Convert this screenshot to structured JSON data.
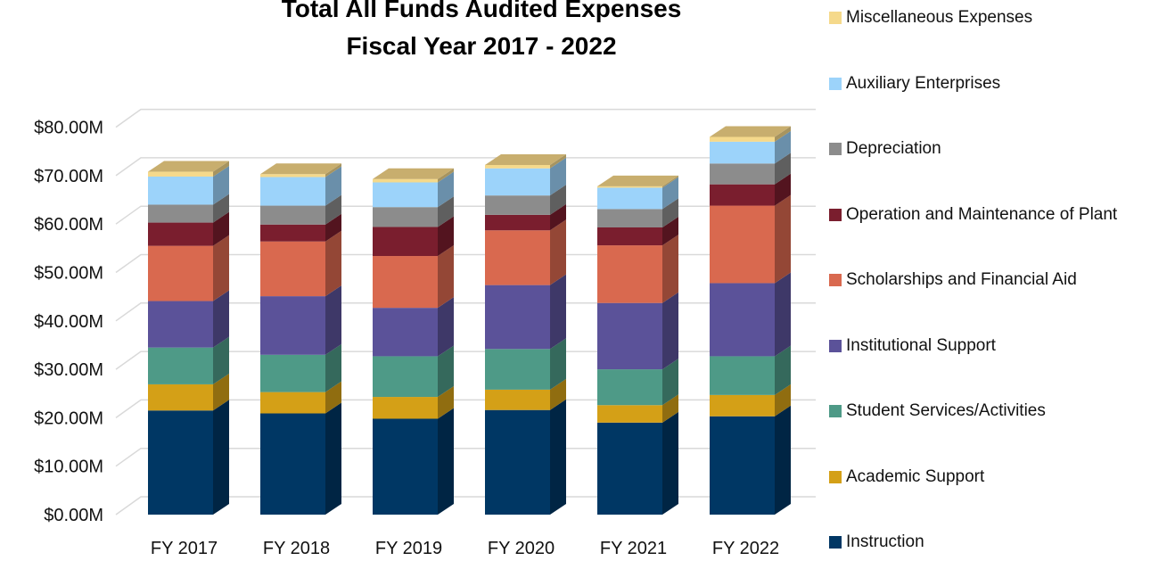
{
  "chart_data": {
    "type": "bar",
    "stacked": true,
    "title": "Total All Funds Audited Expenses",
    "subtitle": "Fiscal Year 2017 - 2022",
    "categories": [
      "FY 2017",
      "FY 2018",
      "FY 2019",
      "FY 2020",
      "FY 2021",
      "FY 2022"
    ],
    "y_tick_labels": [
      "$0.00M",
      "$10.00M",
      "$20.00M",
      "$30.00M",
      "$40.00M",
      "$50.00M",
      "$60.00M",
      "$70.00M",
      "$80.00M"
    ],
    "ylim": [
      0,
      80
    ],
    "y_unit": "$M",
    "grid": true,
    "legend_position": "right",
    "series": [
      {
        "name": "Instruction",
        "color": "#003764",
        "values": [
          21.5,
          20.9,
          19.8,
          21.6,
          19.0,
          20.3
        ]
      },
      {
        "name": "Academic Support",
        "color": "#D4A017",
        "values": [
          5.4,
          4.4,
          4.5,
          4.2,
          3.6,
          4.4
        ]
      },
      {
        "name": "Student Services/Activities",
        "color": "#4E9A87",
        "values": [
          7.6,
          7.7,
          8.4,
          8.4,
          7.4,
          8.0
        ]
      },
      {
        "name": "Institutional Support",
        "color": "#5B5299",
        "values": [
          9.6,
          12.1,
          10.0,
          13.2,
          13.7,
          15.1
        ]
      },
      {
        "name": "Scholarships and Financial Aid",
        "color": "#D9694F",
        "values": [
          11.4,
          11.3,
          10.7,
          11.3,
          11.9,
          16.0
        ]
      },
      {
        "name": "Operation and Maintenance of Plant",
        "color": "#7A1E2E",
        "values": [
          4.8,
          3.5,
          6.0,
          3.2,
          3.7,
          4.4
        ]
      },
      {
        "name": "Depreciation",
        "color": "#8C8C8C",
        "values": [
          3.7,
          3.9,
          4.1,
          4.0,
          3.8,
          4.3
        ]
      },
      {
        "name": "Auxiliary Enterprises",
        "color": "#9CD3FA",
        "values": [
          5.8,
          5.9,
          5.1,
          5.6,
          4.4,
          4.5
        ]
      },
      {
        "name": "Miscellaneous Expenses",
        "color": "#F5D98B",
        "values": [
          1.0,
          0.6,
          0.7,
          0.7,
          0.3,
          1.0
        ]
      }
    ]
  }
}
